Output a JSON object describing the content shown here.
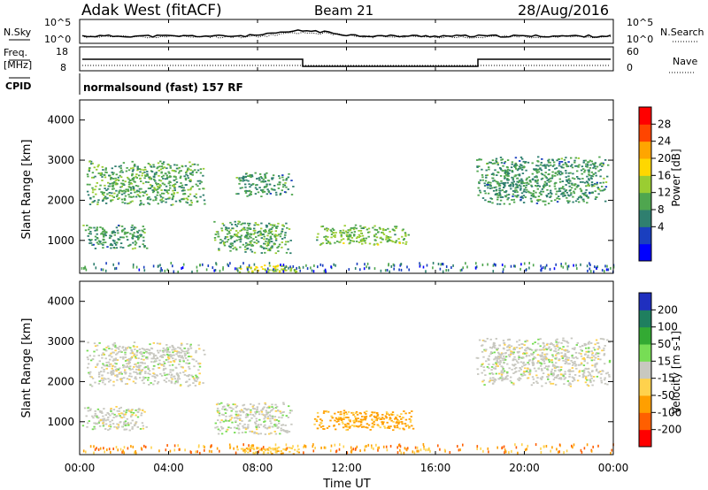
{
  "header": {
    "radar": "Adak West (fitACF)",
    "beam": "Beam 21",
    "date": "28/Aug/2016"
  },
  "strips": {
    "nsky_label": "N.Sky",
    "nsky_ticks": [
      "10^5",
      "10^0"
    ],
    "nsearch_label": "N.Search",
    "nsearch_ticks": [
      "10^5",
      "10^0"
    ],
    "freq_label_1": "Freq.",
    "freq_label_2": "[MHz]",
    "freq_ticks": [
      "18",
      "8"
    ],
    "nave_label": "Nave",
    "nave_ticks": [
      "60",
      "0"
    ],
    "cpid_label": "CPID",
    "cpid_text": "normalsound (fast) 157 RF"
  },
  "colorbars": {
    "power": {
      "label": "Power [dB]",
      "ticks": [
        "28",
        "24",
        "20",
        "16",
        "12",
        "8",
        "4"
      ],
      "colors": [
        "#0000ff",
        "#1a3fbf",
        "#2f7f6f",
        "#4fa64f",
        "#9acd32",
        "#ffd700",
        "#ffa500",
        "#ff4500",
        "#ff0000"
      ]
    },
    "velocity": {
      "label": "Velocity [m s-1]",
      "ticks": [
        "200",
        "100",
        "50",
        "15",
        "-15",
        "-50",
        "-100",
        "-200"
      ],
      "colors": [
        "#1f2fbf",
        "#1f7f5f",
        "#33aa33",
        "#77dd55",
        "#c8c8c0",
        "#ffd24d",
        "#ff9f00",
        "#ff5f00",
        "#ff0000"
      ]
    }
  },
  "chart_data": [
    {
      "type": "heatmap",
      "title": "",
      "xlabel": "Time UT",
      "ylabel": "Slant Range [km]",
      "x_ticks": [
        "00:00",
        "04:00",
        "08:00",
        "12:00",
        "16:00",
        "20:00",
        "00:00"
      ],
      "y_ticks": [
        1000,
        2000,
        3000,
        4000
      ],
      "xlim_hours": [
        0,
        24
      ],
      "ylim_km": [
        180,
        4500
      ],
      "scatter_regions": [
        {
          "t0": 0.1,
          "t1": 3.0,
          "r0": 800,
          "r1": 1400,
          "power": 14
        },
        {
          "t0": 0.3,
          "t1": 5.6,
          "r0": 1900,
          "r1": 3000,
          "power": 16
        },
        {
          "t0": 6.0,
          "t1": 9.5,
          "r0": 700,
          "r1": 1500,
          "power": 16
        },
        {
          "t0": 7.0,
          "t1": 9.6,
          "r0": 2100,
          "r1": 2700,
          "power": 14
        },
        {
          "t0": 10.5,
          "t1": 14.8,
          "r0": 900,
          "r1": 1400,
          "power": 18
        },
        {
          "t0": 17.8,
          "t1": 23.8,
          "r0": 1900,
          "r1": 3100,
          "power": 14
        },
        {
          "t0": 7.0,
          "t1": 10.0,
          "r0": 200,
          "r1": 400,
          "power": 22
        }
      ]
    },
    {
      "type": "heatmap",
      "title": "",
      "xlabel": "Time UT",
      "ylabel": "Slant Range [km]",
      "x_ticks": [
        "00:00",
        "04:00",
        "08:00",
        "12:00",
        "16:00",
        "20:00",
        "00:00"
      ],
      "y_ticks": [
        1000,
        2000,
        3000,
        4000
      ],
      "xlim_hours": [
        0,
        24
      ],
      "ylim_km": [
        180,
        4500
      ],
      "scatter_regions": [
        {
          "t0": 0.1,
          "t1": 3.0,
          "r0": 800,
          "r1": 1400,
          "velocity": 0
        },
        {
          "t0": 0.3,
          "t1": 5.6,
          "r0": 1900,
          "r1": 3000,
          "velocity": 0
        },
        {
          "t0": 6.0,
          "t1": 9.5,
          "r0": 700,
          "r1": 1500,
          "velocity": 0
        },
        {
          "t0": 10.5,
          "t1": 15.0,
          "r0": 800,
          "r1": 1300,
          "velocity": -60
        },
        {
          "t0": 17.8,
          "t1": 23.8,
          "r0": 1900,
          "r1": 3100,
          "velocity": 0
        },
        {
          "t0": 7.0,
          "t1": 10.0,
          "r0": 200,
          "r1": 400,
          "velocity": -40
        }
      ]
    }
  ]
}
